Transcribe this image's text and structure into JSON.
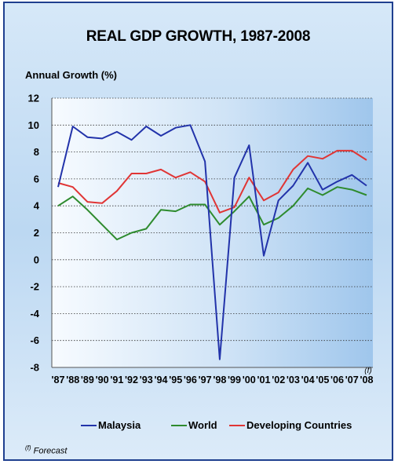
{
  "chart_data": {
    "type": "line",
    "title": "REAL GDP GROWTH, 1987-2008",
    "ylabel": "Annual Growth (%)",
    "xlabel": "",
    "categories": [
      "'87",
      "'88",
      "'89",
      "'90",
      "'91",
      "'92",
      "'93",
      "'94",
      "'95",
      "'96",
      "'97",
      "'98",
      "'99",
      "'00",
      "'01",
      "'02",
      "'03",
      "'04",
      "'05",
      "'06",
      "'07",
      "'08"
    ],
    "forecast_marker": "(f)",
    "ylim": [
      -8,
      12
    ],
    "yticks": [
      12,
      10,
      8,
      6,
      4,
      2,
      0,
      -2,
      -4,
      -6,
      -8
    ],
    "grid": "horizontal dotted",
    "legend_position": "bottom",
    "series": [
      {
        "name": "Malaysia",
        "color": "#2233aa",
        "values": [
          5.4,
          9.9,
          9.1,
          9.0,
          9.5,
          8.9,
          9.9,
          9.2,
          9.8,
          10.0,
          7.3,
          -7.4,
          6.1,
          8.5,
          0.3,
          4.4,
          5.5,
          7.2,
          5.2,
          5.8,
          6.3,
          5.5
        ]
      },
      {
        "name": "World",
        "color": "#2e8b2e",
        "values": [
          4.0,
          4.7,
          3.7,
          2.6,
          1.5,
          2.0,
          2.3,
          3.7,
          3.6,
          4.1,
          4.1,
          2.6,
          3.6,
          4.7,
          2.6,
          3.1,
          4.0,
          5.3,
          4.8,
          5.4,
          5.2,
          4.8
        ]
      },
      {
        "name": "Developing Countries",
        "color": "#e03535",
        "values": [
          5.7,
          5.4,
          4.3,
          4.2,
          5.1,
          6.4,
          6.4,
          6.7,
          6.1,
          6.5,
          5.8,
          3.5,
          3.9,
          6.1,
          4.4,
          5.0,
          6.7,
          7.7,
          7.5,
          8.1,
          8.1,
          7.4
        ]
      }
    ]
  },
  "footnote": {
    "mark": "(f)",
    "text": " Forecast"
  }
}
